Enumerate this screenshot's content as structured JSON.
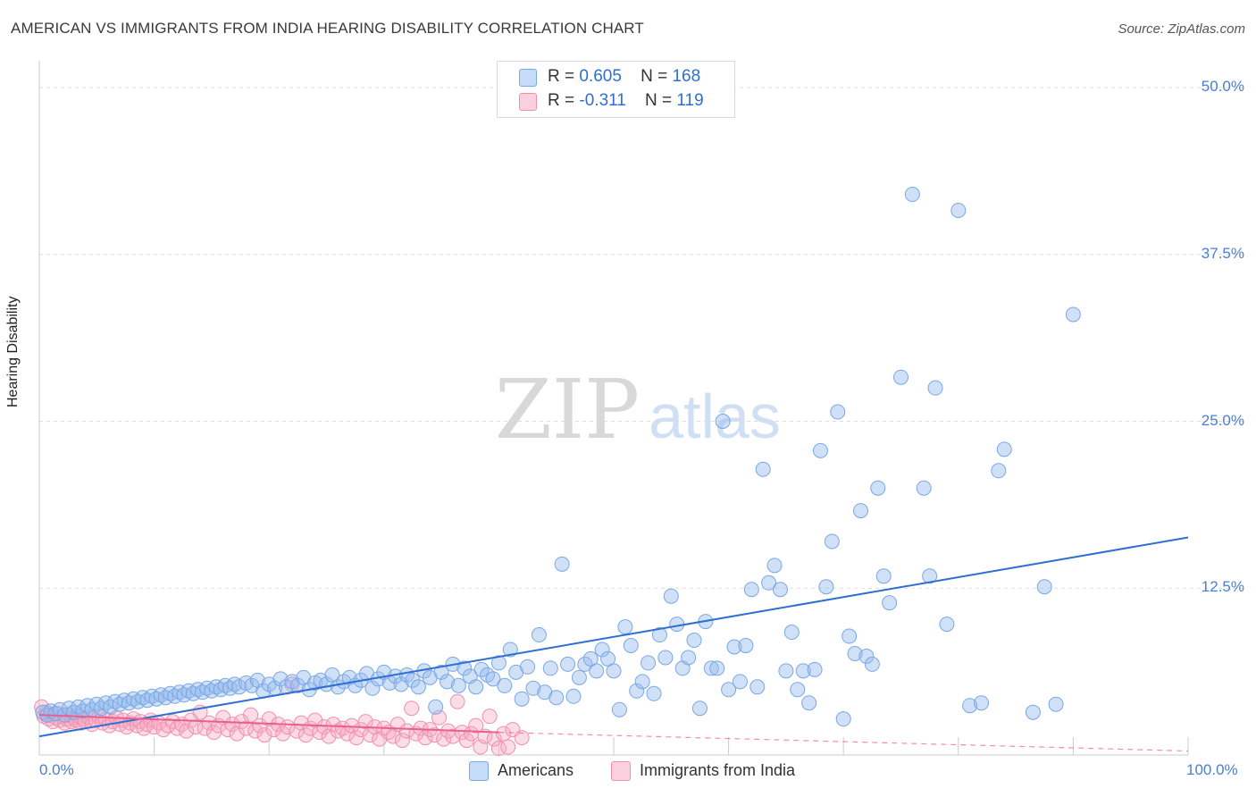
{
  "title": "AMERICAN VS IMMIGRANTS FROM INDIA HEARING DISABILITY CORRELATION CHART",
  "source": "Source: ZipAtlas.com",
  "watermark": {
    "zip": "ZIP",
    "atlas": "atlas"
  },
  "colors": {
    "americans": "#7aa7e6",
    "americans_line": "#2e6fd1",
    "india": "#f28fb0",
    "india_line": "#e8608e",
    "tick_text": "#4a7fd0"
  },
  "legend": {
    "rows": [
      {
        "r_label": "R =",
        "r_value": "0.605",
        "n_label": "N =",
        "n_value": "168"
      },
      {
        "r_label": "R =",
        "r_value": "-0.311",
        "n_label": "N =",
        "n_value": "119"
      }
    ]
  },
  "chart_data": {
    "type": "scatter",
    "title": "AMERICAN VS IMMIGRANTS FROM INDIA HEARING DISABILITY CORRELATION CHART",
    "xlabel": "",
    "ylabel": "Hearing Disability",
    "xlim": [
      0,
      100
    ],
    "ylim": [
      0,
      50
    ],
    "x_tick_labels": [
      "0.0%",
      "100.0%"
    ],
    "y_ticks": [
      12.5,
      25.0,
      37.5,
      50.0
    ],
    "y_tick_labels": [
      "12.5%",
      "25.0%",
      "37.5%",
      "50.0%"
    ],
    "grid": true,
    "legend_position": "top-center",
    "series": [
      {
        "name": "Americans",
        "r": 0.605,
        "n": 168,
        "trend": {
          "x": [
            0,
            100
          ],
          "y": [
            1.4,
            16.3
          ]
        },
        "points": [
          [
            0.3,
            3.2
          ],
          [
            0.7,
            3.0
          ],
          [
            1.0,
            3.3
          ],
          [
            1.4,
            3.1
          ],
          [
            1.8,
            3.4
          ],
          [
            2.2,
            3.0
          ],
          [
            2.6,
            3.5
          ],
          [
            3.0,
            3.2
          ],
          [
            3.4,
            3.6
          ],
          [
            3.8,
            3.3
          ],
          [
            4.2,
            3.7
          ],
          [
            4.6,
            3.4
          ],
          [
            5.0,
            3.8
          ],
          [
            5.4,
            3.5
          ],
          [
            5.8,
            3.9
          ],
          [
            6.2,
            3.6
          ],
          [
            6.6,
            4.0
          ],
          [
            7.0,
            3.8
          ],
          [
            7.4,
            4.1
          ],
          [
            7.8,
            3.9
          ],
          [
            8.2,
            4.2
          ],
          [
            8.6,
            4.0
          ],
          [
            9.0,
            4.3
          ],
          [
            9.4,
            4.1
          ],
          [
            9.8,
            4.4
          ],
          [
            10.2,
            4.2
          ],
          [
            10.6,
            4.5
          ],
          [
            11.0,
            4.3
          ],
          [
            11.4,
            4.6
          ],
          [
            11.8,
            4.4
          ],
          [
            12.2,
            4.7
          ],
          [
            12.6,
            4.5
          ],
          [
            13.0,
            4.8
          ],
          [
            13.4,
            4.6
          ],
          [
            13.8,
            4.9
          ],
          [
            14.2,
            4.7
          ],
          [
            14.6,
            5.0
          ],
          [
            15.0,
            4.8
          ],
          [
            15.4,
            5.1
          ],
          [
            15.8,
            4.9
          ],
          [
            16.2,
            5.2
          ],
          [
            16.6,
            5.0
          ],
          [
            17.0,
            5.3
          ],
          [
            17.4,
            5.1
          ],
          [
            18.0,
            5.4
          ],
          [
            18.5,
            5.2
          ],
          [
            19.0,
            5.6
          ],
          [
            19.5,
            4.8
          ],
          [
            20.0,
            5.3
          ],
          [
            20.5,
            5.0
          ],
          [
            21.0,
            5.7
          ],
          [
            21.5,
            5.1
          ],
          [
            22.0,
            5.5
          ],
          [
            22.5,
            5.2
          ],
          [
            23.0,
            5.8
          ],
          [
            23.5,
            4.9
          ],
          [
            24.0,
            5.4
          ],
          [
            24.5,
            5.6
          ],
          [
            25.0,
            5.3
          ],
          [
            25.5,
            6.0
          ],
          [
            26.0,
            5.1
          ],
          [
            26.5,
            5.5
          ],
          [
            27.0,
            5.8
          ],
          [
            27.5,
            5.2
          ],
          [
            28.0,
            5.6
          ],
          [
            28.5,
            6.1
          ],
          [
            29.0,
            5.0
          ],
          [
            29.5,
            5.7
          ],
          [
            30.0,
            6.2
          ],
          [
            30.5,
            5.4
          ],
          [
            31.0,
            5.9
          ],
          [
            31.5,
            5.3
          ],
          [
            32.0,
            6.0
          ],
          [
            32.5,
            5.6
          ],
          [
            33.0,
            5.1
          ],
          [
            33.5,
            6.3
          ],
          [
            34.0,
            5.8
          ],
          [
            34.5,
            3.6
          ],
          [
            35.0,
            6.2
          ],
          [
            35.5,
            5.5
          ],
          [
            36.0,
            6.8
          ],
          [
            36.5,
            5.2
          ],
          [
            37.0,
            6.5
          ],
          [
            37.5,
            5.9
          ],
          [
            38.0,
            5.1
          ],
          [
            38.5,
            6.4
          ],
          [
            39.0,
            6.0
          ],
          [
            39.5,
            5.7
          ],
          [
            40.0,
            6.9
          ],
          [
            40.5,
            5.2
          ],
          [
            41.0,
            7.9
          ],
          [
            41.5,
            6.2
          ],
          [
            42.0,
            4.2
          ],
          [
            42.5,
            6.6
          ],
          [
            43.0,
            5.0
          ],
          [
            43.5,
            9.0
          ],
          [
            44.0,
            4.7
          ],
          [
            44.5,
            6.5
          ],
          [
            45.0,
            4.3
          ],
          [
            45.5,
            14.3
          ],
          [
            46.0,
            6.8
          ],
          [
            46.5,
            4.4
          ],
          [
            47.0,
            5.8
          ],
          [
            47.5,
            6.8
          ],
          [
            48.0,
            7.2
          ],
          [
            48.5,
            6.3
          ],
          [
            49.0,
            7.9
          ],
          [
            49.5,
            7.2
          ],
          [
            50.0,
            6.3
          ],
          [
            50.5,
            3.4
          ],
          [
            51.0,
            9.6
          ],
          [
            51.5,
            8.2
          ],
          [
            52.0,
            4.8
          ],
          [
            52.5,
            5.5
          ],
          [
            53.0,
            6.9
          ],
          [
            53.5,
            4.6
          ],
          [
            54.0,
            9.0
          ],
          [
            54.5,
            7.3
          ],
          [
            55.0,
            11.9
          ],
          [
            55.5,
            9.8
          ],
          [
            56.0,
            6.5
          ],
          [
            56.5,
            7.3
          ],
          [
            57.0,
            8.6
          ],
          [
            57.5,
            3.5
          ],
          [
            58.0,
            10.0
          ],
          [
            58.5,
            6.5
          ],
          [
            59.0,
            6.5
          ],
          [
            59.5,
            25.0
          ],
          [
            60.0,
            4.9
          ],
          [
            60.5,
            8.1
          ],
          [
            61.0,
            5.5
          ],
          [
            61.5,
            8.2
          ],
          [
            62.0,
            12.4
          ],
          [
            62.5,
            5.1
          ],
          [
            63.0,
            21.4
          ],
          [
            63.5,
            12.9
          ],
          [
            64.0,
            14.2
          ],
          [
            64.5,
            12.4
          ],
          [
            65.0,
            6.3
          ],
          [
            65.5,
            9.2
          ],
          [
            66.0,
            4.9
          ],
          [
            66.5,
            6.3
          ],
          [
            67.0,
            3.9
          ],
          [
            67.5,
            6.4
          ],
          [
            68.0,
            22.8
          ],
          [
            68.5,
            12.6
          ],
          [
            69.0,
            16.0
          ],
          [
            69.5,
            25.7
          ],
          [
            70.0,
            2.7
          ],
          [
            70.5,
            8.9
          ],
          [
            71.0,
            7.6
          ],
          [
            71.5,
            18.3
          ],
          [
            72.0,
            7.4
          ],
          [
            72.5,
            6.8
          ],
          [
            73.0,
            20.0
          ],
          [
            73.5,
            13.4
          ],
          [
            74.0,
            11.4
          ],
          [
            75.0,
            28.3
          ],
          [
            76.0,
            42.0
          ],
          [
            77.0,
            20.0
          ],
          [
            77.5,
            13.4
          ],
          [
            78.0,
            27.5
          ],
          [
            79.0,
            9.8
          ],
          [
            80.0,
            40.8
          ],
          [
            81.0,
            3.7
          ],
          [
            82.0,
            3.9
          ],
          [
            83.5,
            21.3
          ],
          [
            84.0,
            22.9
          ],
          [
            86.5,
            3.2
          ],
          [
            87.5,
            12.6
          ],
          [
            88.5,
            3.8
          ],
          [
            90.0,
            33.0
          ]
        ]
      },
      {
        "name": "Immigrants from India",
        "r": -0.311,
        "n": 119,
        "trend": {
          "x": [
            0,
            40
          ],
          "y": [
            3.0,
            1.7
          ]
        },
        "trend_dashed": {
          "x": [
            40,
            100
          ],
          "y": [
            1.7,
            0.3
          ]
        },
        "points": [
          [
            0.2,
            3.6
          ],
          [
            0.4,
            2.9
          ],
          [
            0.6,
            3.2
          ],
          [
            0.8,
            2.7
          ],
          [
            1.0,
            3.0
          ],
          [
            1.2,
            2.5
          ],
          [
            1.4,
            2.8
          ],
          [
            1.6,
            3.1
          ],
          [
            1.8,
            2.6
          ],
          [
            2.0,
            2.9
          ],
          [
            2.2,
            2.4
          ],
          [
            2.4,
            2.7
          ],
          [
            2.6,
            3.0
          ],
          [
            2.8,
            2.5
          ],
          [
            3.0,
            2.8
          ],
          [
            3.2,
            2.6
          ],
          [
            3.4,
            2.9
          ],
          [
            3.6,
            2.4
          ],
          [
            3.8,
            2.7
          ],
          [
            4.0,
            2.5
          ],
          [
            4.3,
            2.8
          ],
          [
            4.6,
            2.3
          ],
          [
            4.9,
            2.6
          ],
          [
            5.2,
            2.9
          ],
          [
            5.5,
            2.4
          ],
          [
            5.8,
            2.7
          ],
          [
            6.1,
            2.2
          ],
          [
            6.4,
            2.5
          ],
          [
            6.7,
            2.8
          ],
          [
            7.0,
            2.3
          ],
          [
            7.3,
            2.6
          ],
          [
            7.6,
            2.1
          ],
          [
            7.9,
            2.4
          ],
          [
            8.2,
            2.7
          ],
          [
            8.5,
            2.2
          ],
          [
            8.8,
            2.5
          ],
          [
            9.1,
            2.0
          ],
          [
            9.4,
            2.3
          ],
          [
            9.7,
            2.6
          ],
          [
            10.0,
            2.1
          ],
          [
            10.4,
            2.4
          ],
          [
            10.8,
            1.9
          ],
          [
            11.2,
            2.2
          ],
          [
            11.6,
            2.5
          ],
          [
            12.0,
            2.0
          ],
          [
            12.4,
            2.3
          ],
          [
            12.8,
            1.8
          ],
          [
            13.2,
            2.6
          ],
          [
            13.6,
            2.1
          ],
          [
            14.0,
            3.2
          ],
          [
            14.4,
            2.0
          ],
          [
            14.8,
            2.4
          ],
          [
            15.2,
            1.7
          ],
          [
            15.6,
            2.2
          ],
          [
            16.0,
            2.8
          ],
          [
            16.4,
            1.9
          ],
          [
            16.8,
            2.3
          ],
          [
            17.2,
            1.6
          ],
          [
            17.6,
            2.5
          ],
          [
            18.0,
            2.0
          ],
          [
            18.4,
            3.0
          ],
          [
            18.8,
            1.8
          ],
          [
            19.2,
            2.2
          ],
          [
            19.6,
            1.5
          ],
          [
            20.0,
            2.7
          ],
          [
            20.4,
            1.9
          ],
          [
            20.8,
            2.3
          ],
          [
            21.2,
            1.6
          ],
          [
            21.6,
            2.1
          ],
          [
            22.0,
            5.3
          ],
          [
            22.4,
            1.8
          ],
          [
            22.8,
            2.4
          ],
          [
            23.2,
            1.5
          ],
          [
            23.6,
            2.0
          ],
          [
            24.0,
            2.6
          ],
          [
            24.4,
            1.7
          ],
          [
            24.8,
            2.1
          ],
          [
            25.2,
            1.4
          ],
          [
            25.6,
            2.3
          ],
          [
            26.0,
            1.8
          ],
          [
            26.4,
            2.0
          ],
          [
            26.8,
            1.6
          ],
          [
            27.2,
            2.2
          ],
          [
            27.6,
            1.3
          ],
          [
            28.0,
            1.9
          ],
          [
            28.4,
            2.5
          ],
          [
            28.8,
            1.5
          ],
          [
            29.2,
            2.1
          ],
          [
            29.6,
            1.2
          ],
          [
            30.0,
            2.0
          ],
          [
            30.4,
            1.7
          ],
          [
            30.8,
            1.4
          ],
          [
            31.2,
            2.3
          ],
          [
            31.6,
            1.1
          ],
          [
            32.0,
            1.8
          ],
          [
            32.4,
            3.5
          ],
          [
            32.8,
            1.6
          ],
          [
            33.2,
            2.0
          ],
          [
            33.6,
            1.3
          ],
          [
            34.0,
            1.9
          ],
          [
            34.4,
            1.5
          ],
          [
            34.8,
            2.8
          ],
          [
            35.2,
            1.2
          ],
          [
            35.6,
            1.8
          ],
          [
            36.0,
            1.4
          ],
          [
            36.4,
            4.0
          ],
          [
            36.8,
            1.7
          ],
          [
            37.2,
            1.1
          ],
          [
            37.6,
            1.6
          ],
          [
            38.0,
            2.2
          ],
          [
            38.4,
            0.6
          ],
          [
            38.8,
            1.4
          ],
          [
            39.2,
            2.9
          ],
          [
            39.6,
            1.2
          ],
          [
            40.0,
            0.5
          ],
          [
            40.4,
            1.6
          ],
          [
            40.8,
            0.6
          ],
          [
            41.2,
            1.9
          ],
          [
            42.0,
            1.3
          ]
        ]
      }
    ]
  },
  "bottom_legend": [
    {
      "label": "Americans"
    },
    {
      "label": "Immigrants from India"
    }
  ]
}
